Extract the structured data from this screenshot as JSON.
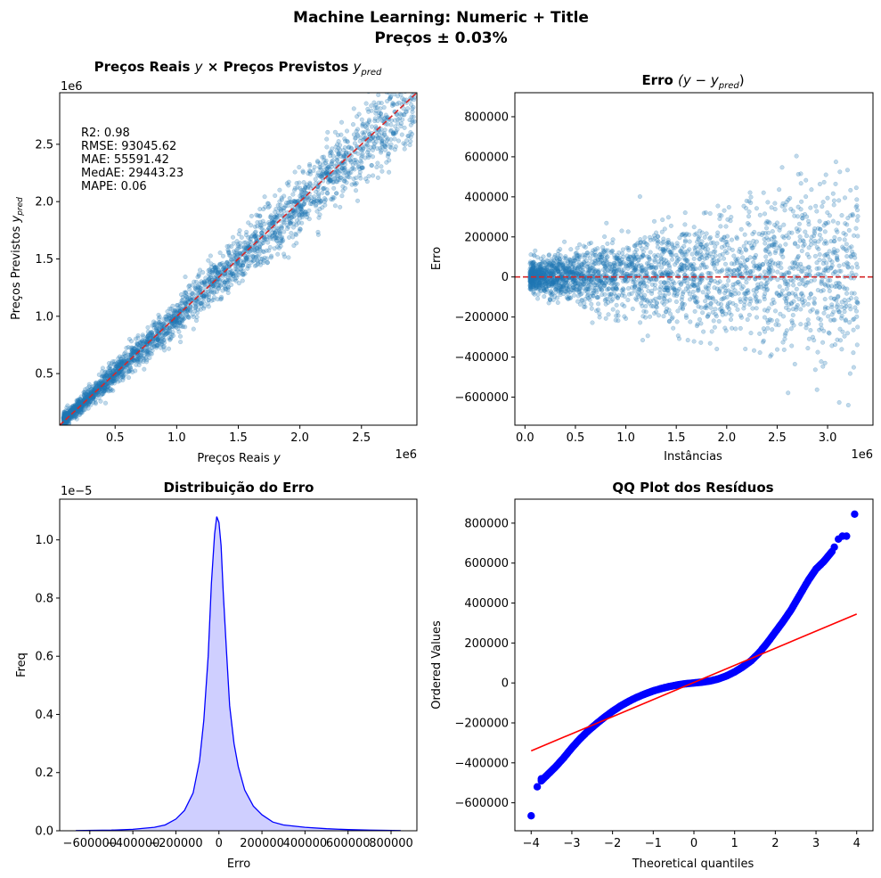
{
  "figure": {
    "suptitle_line1": "Machine Learning: Numeric + Title",
    "suptitle_line2": "Preços ± 0.03%"
  },
  "chart_data": [
    {
      "id": "real_vs_pred",
      "type": "scatter",
      "title": "Preços Reais y × Preços Previstos y_pred",
      "title_parts": {
        "a": "Preços Reais ",
        "b": "y",
        "c": " × Preços Previstos ",
        "d": "y",
        "e": "pred"
      },
      "xlabel_parts": {
        "a": "Preços Reais ",
        "b": "y"
      },
      "ylabel_parts": {
        "a": "Preços Previstos ",
        "b": "y",
        "c": "pred"
      },
      "x_offset_label": "1e6",
      "y_offset_label": "1e6",
      "xlim": [
        0.05,
        2.95
      ],
      "ylim": [
        0.05,
        2.95
      ],
      "xticks": [
        0.5,
        1.0,
        1.5,
        2.0,
        2.5
      ],
      "xtick_labels": [
        "0.5",
        "1.0",
        "1.5",
        "2.0",
        "2.5"
      ],
      "yticks": [
        0.5,
        1.0,
        1.5,
        2.0,
        2.5
      ],
      "ytick_labels": [
        "0.5",
        "1.0",
        "1.5",
        "2.0",
        "2.5"
      ],
      "point_color": "#1f77b4",
      "reference_line": {
        "from": [
          0.05,
          0.05
        ],
        "to": [
          2.95,
          2.95
        ],
        "color": "#d62728",
        "style": "dashed"
      },
      "metrics": [
        "R2: 0.98",
        "RMSE: 93045.62",
        "MAE: 55591.42",
        "MedAE: 29443.23",
        "MAPE: 0.06"
      ],
      "grid": false
    },
    {
      "id": "error_scatter",
      "type": "scatter",
      "title_parts": {
        "a": "Erro ",
        "b": "(y − y",
        "c": "pred",
        "d": ")"
      },
      "xlabel": "Instâncias",
      "ylabel": "Erro",
      "x_offset_label": "1e6",
      "xlim": [
        -0.1,
        3.45
      ],
      "ylim": [
        -740000,
        920000
      ],
      "xticks": [
        0.0,
        0.5,
        1.0,
        1.5,
        2.0,
        2.5,
        3.0
      ],
      "xtick_labels": [
        "0.0",
        "0.5",
        "1.0",
        "1.5",
        "2.0",
        "2.5",
        "3.0"
      ],
      "yticks": [
        -600000,
        -400000,
        -200000,
        0,
        200000,
        400000,
        600000,
        800000
      ],
      "ytick_labels": [
        "−600000",
        "−400000",
        "−200000",
        "0",
        "200000",
        "400000",
        "600000",
        "800000"
      ],
      "point_color": "#1f77b4",
      "reference_line": {
        "y": 0,
        "color": "#d62728",
        "style": "dashed"
      },
      "grid": false
    },
    {
      "id": "error_distribution",
      "type": "area",
      "title": "Distribuição do Erro",
      "xlabel": "Erro",
      "ylabel": "Freq",
      "y_offset_label": "1e−5",
      "xlim": [
        -740000,
        920000
      ],
      "ylim": [
        0,
        1.14
      ],
      "xticks": [
        -600000,
        -400000,
        -200000,
        0,
        200000,
        400000,
        600000,
        800000
      ],
      "xtick_labels": [
        "−600000",
        "−400000",
        "−200000",
        "0",
        "200000",
        "400000",
        "600000",
        "800000"
      ],
      "yticks": [
        0.0,
        0.2,
        0.4,
        0.6,
        0.8,
        1.0
      ],
      "ytick_labels": [
        "0.0",
        "0.2",
        "0.4",
        "0.6",
        "0.8",
        "1.0"
      ],
      "line_color": "#0000ff",
      "fill_color": "#ccccff",
      "x": [
        -665000,
        -500000,
        -400000,
        -300000,
        -250000,
        -200000,
        -160000,
        -120000,
        -90000,
        -70000,
        -50000,
        -35000,
        -20000,
        -10000,
        0,
        10000,
        20000,
        35000,
        50000,
        70000,
        90000,
        120000,
        160000,
        200000,
        250000,
        300000,
        400000,
        500000,
        600000,
        700000,
        845000
      ],
      "y": [
        0.0005,
        0.002,
        0.005,
        0.012,
        0.02,
        0.04,
        0.07,
        0.13,
        0.24,
        0.38,
        0.6,
        0.85,
        1.02,
        1.08,
        1.06,
        0.98,
        0.82,
        0.62,
        0.43,
        0.3,
        0.22,
        0.14,
        0.085,
        0.055,
        0.03,
        0.02,
        0.012,
        0.007,
        0.004,
        0.002,
        0.0005
      ],
      "grid": false
    },
    {
      "id": "qq_plot",
      "type": "scatter",
      "title": "QQ Plot dos Resíduos",
      "xlabel": "Theoretical quantiles",
      "ylabel": "Ordered Values",
      "xlim": [
        -4.4,
        4.4
      ],
      "ylim": [
        -740000,
        920000
      ],
      "xticks": [
        -4,
        -3,
        -2,
        -1,
        0,
        1,
        2,
        3,
        4
      ],
      "xtick_labels": [
        "−4",
        "−3",
        "−2",
        "−1",
        "0",
        "1",
        "2",
        "3",
        "4"
      ],
      "yticks": [
        -600000,
        -400000,
        -200000,
        0,
        200000,
        400000,
        600000,
        800000
      ],
      "ytick_labels": [
        "−600000",
        "−400000",
        "−200000",
        "0",
        "200000",
        "400000",
        "600000",
        "800000"
      ],
      "marker_color": "#0000ff",
      "fit_line": {
        "from": [
          -4,
          -340000
        ],
        "to": [
          4,
          345000
        ],
        "color": "#ff0000"
      },
      "curve_x": [
        -3.75,
        -3.6,
        -3.4,
        -3.2,
        -3.0,
        -2.8,
        -2.6,
        -2.4,
        -2.2,
        -2.0,
        -1.8,
        -1.6,
        -1.4,
        -1.2,
        -1.0,
        -0.8,
        -0.6,
        -0.4,
        -0.2,
        0.0,
        0.2,
        0.4,
        0.6,
        0.8,
        1.0,
        1.2,
        1.4,
        1.6,
        1.8,
        2.0,
        2.2,
        2.4,
        2.6,
        2.8,
        3.0,
        3.2,
        3.4
      ],
      "curve_y": [
        -490000,
        -460000,
        -420000,
        -375000,
        -325000,
        -280000,
        -240000,
        -205000,
        -172000,
        -142000,
        -115000,
        -92000,
        -72000,
        -55000,
        -40000,
        -28000,
        -18000,
        -10000,
        -4000,
        0,
        4000,
        10000,
        20000,
        35000,
        55000,
        80000,
        110000,
        150000,
        200000,
        255000,
        310000,
        370000,
        440000,
        510000,
        570000,
        610000,
        660000
      ],
      "outliers": [
        [
          -4.0,
          -665000
        ],
        [
          -3.85,
          -520000
        ],
        [
          -3.75,
          -480000
        ],
        [
          3.45,
          680000
        ],
        [
          3.55,
          720000
        ],
        [
          3.65,
          735000
        ],
        [
          3.75,
          735000
        ],
        [
          3.95,
          845000
        ]
      ],
      "grid": false
    }
  ]
}
